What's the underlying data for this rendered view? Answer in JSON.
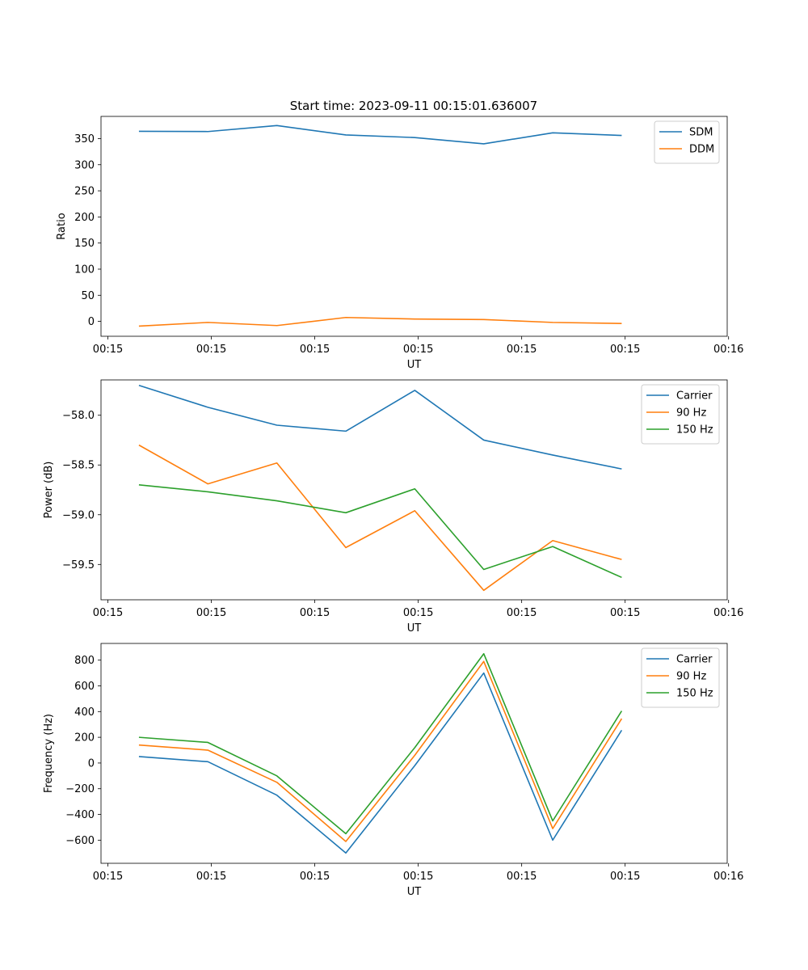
{
  "figure_title": "Start time: 2023-09-11 00:15:01.636007",
  "colors": {
    "blue": "#1f77b4",
    "orange": "#ff7f0e",
    "green": "#2ca02c"
  },
  "chart_data": [
    {
      "type": "line",
      "title": "Start time: 2023-09-11 00:15:01.636007",
      "xlabel": "UT",
      "ylabel": "Ratio",
      "x_tick_labels": [
        "00:15",
        "00:15",
        "00:15",
        "00:15",
        "00:15",
        "00:15",
        "00:16"
      ],
      "x": [
        1,
        2,
        3,
        4,
        5,
        6,
        7,
        8
      ],
      "xlim": [
        0.45,
        9.53
      ],
      "x_ticks": [
        0.55,
        2.05,
        3.55,
        5.05,
        6.55,
        8.05,
        9.55
      ],
      "ylim": [
        -28.5,
        392.5
      ],
      "y_ticks": [
        0,
        50,
        100,
        150,
        200,
        250,
        300,
        350
      ],
      "legend_position": "top-right",
      "series": [
        {
          "name": "SDM",
          "color": "#1f77b4",
          "values": [
            364,
            363.5,
            375,
            357,
            352,
            340,
            361,
            356
          ]
        },
        {
          "name": "DDM",
          "color": "#ff7f0e",
          "values": [
            -9,
            -2,
            -8,
            7.5,
            4.5,
            3.5,
            -2,
            -4
          ]
        }
      ]
    },
    {
      "type": "line",
      "xlabel": "UT",
      "ylabel": "Power (dB)",
      "x_tick_labels": [
        "00:15",
        "00:15",
        "00:15",
        "00:15",
        "00:15",
        "00:15",
        "00:16"
      ],
      "x": [
        1,
        2,
        3,
        4,
        5,
        6,
        7,
        8
      ],
      "xlim": [
        0.45,
        9.53
      ],
      "x_ticks": [
        0.55,
        2.05,
        3.55,
        5.05,
        6.55,
        8.05,
        9.55
      ],
      "ylim": [
        -59.855,
        -57.645
      ],
      "y_ticks": [
        -58.0,
        -58.5,
        -59.0,
        -59.5
      ],
      "y_tick_labels": [
        "−58.0",
        "−58.5",
        "−59.0",
        "−59.5"
      ],
      "legend_position": "top-right",
      "series": [
        {
          "name": "Carrier",
          "color": "#1f77b4",
          "values": [
            -57.7,
            -57.92,
            -58.1,
            -58.16,
            -57.75,
            -58.25,
            -58.4,
            -58.54
          ]
        },
        {
          "name": "90 Hz",
          "color": "#ff7f0e",
          "values": [
            -58.3,
            -58.69,
            -58.48,
            -59.33,
            -58.96,
            -59.76,
            -59.26,
            -59.45
          ]
        },
        {
          "name": "150 Hz",
          "color": "#2ca02c",
          "values": [
            -58.7,
            -58.77,
            -58.86,
            -58.98,
            -58.74,
            -59.55,
            -59.32,
            -59.63
          ]
        }
      ]
    },
    {
      "type": "line",
      "xlabel": "UT",
      "ylabel": "Frequency (Hz)",
      "x_tick_labels": [
        "00:15",
        "00:15",
        "00:15",
        "00:15",
        "00:15",
        "00:15",
        "00:16"
      ],
      "x": [
        1,
        2,
        3,
        4,
        5,
        6,
        7,
        8
      ],
      "xlim": [
        0.45,
        9.53
      ],
      "x_ticks": [
        0.55,
        2.05,
        3.55,
        5.05,
        6.55,
        8.05,
        9.55
      ],
      "ylim": [
        -780,
        930
      ],
      "y_ticks": [
        800,
        600,
        400,
        200,
        0,
        -200,
        -400,
        -600
      ],
      "y_tick_labels": [
        "800",
        "600",
        "400",
        "200",
        "0",
        "−200",
        "−400",
        "−600"
      ],
      "legend_position": "top-right",
      "series": [
        {
          "name": "Carrier",
          "color": "#1f77b4",
          "values": [
            50,
            10,
            -250,
            -700,
            -20,
            700,
            -600,
            255
          ]
        },
        {
          "name": "90 Hz",
          "color": "#ff7f0e",
          "values": [
            140,
            100,
            -150,
            -610,
            60,
            790,
            -510,
            345
          ]
        },
        {
          "name": "150 Hz",
          "color": "#2ca02c",
          "values": [
            200,
            160,
            -100,
            -550,
            120,
            850,
            -450,
            405
          ]
        }
      ]
    }
  ]
}
